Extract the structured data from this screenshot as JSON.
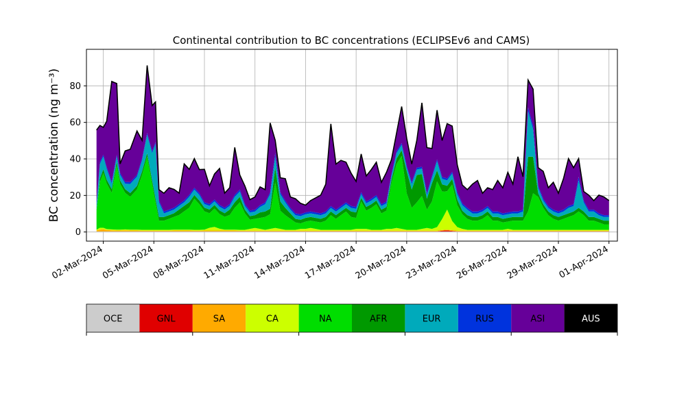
{
  "chart_data": {
    "type": "area",
    "stacked": true,
    "title": "Continental contribution to BC concentrations (ECLIPSEv6 and CAMS)",
    "ylabel": "BC concentration (ng m⁻³)",
    "ylim": [
      -5,
      100
    ],
    "yticks": [
      0,
      20,
      40,
      60,
      80
    ],
    "grid": true,
    "x_start_day": 1.4,
    "x_ticks": [
      {
        "day": 2,
        "label": "02-Mar-2024"
      },
      {
        "day": 5,
        "label": "05-Mar-2024"
      },
      {
        "day": 8,
        "label": "08-Mar-2024"
      },
      {
        "day": 11,
        "label": "11-Mar-2024"
      },
      {
        "day": 14,
        "label": "14-Mar-2024"
      },
      {
        "day": 17,
        "label": "17-Mar-2024"
      },
      {
        "day": 20,
        "label": "20-Mar-2024"
      },
      {
        "day": 23,
        "label": "23-Mar-2024"
      },
      {
        "day": 26,
        "label": "26-Mar-2024"
      },
      {
        "day": 29,
        "label": "29-Mar-2024"
      },
      {
        "day": 32,
        "label": "01-Apr-2024"
      }
    ],
    "x": [
      1.6,
      1.8,
      2.0,
      2.2,
      2.5,
      2.8,
      3.0,
      3.3,
      3.6,
      4.0,
      4.3,
      4.6,
      4.9,
      5.1,
      5.3,
      5.6,
      5.9,
      6.2,
      6.5,
      6.8,
      7.1,
      7.4,
      7.7,
      8.0,
      8.3,
      8.6,
      8.9,
      9.2,
      9.5,
      9.8,
      10.1,
      10.4,
      10.7,
      11.0,
      11.3,
      11.6,
      11.9,
      12.2,
      12.5,
      12.8,
      13.1,
      13.4,
      13.7,
      14.0,
      14.3,
      14.6,
      14.9,
      15.2,
      15.5,
      15.8,
      16.1,
      16.4,
      16.7,
      17.0,
      17.3,
      17.6,
      17.9,
      18.2,
      18.5,
      18.8,
      19.1,
      19.4,
      19.7,
      20.0,
      20.3,
      20.6,
      20.9,
      21.2,
      21.5,
      21.8,
      22.1,
      22.4,
      22.7,
      23.0,
      23.3,
      23.6,
      23.9,
      24.2,
      24.5,
      24.8,
      25.1,
      25.4,
      25.7,
      26.0,
      26.3,
      26.6,
      26.9,
      27.2,
      27.5,
      27.8,
      28.1,
      28.4,
      28.7,
      29.0,
      29.3,
      29.6,
      29.9,
      30.2,
      30.5,
      30.8,
      31.1,
      31.4,
      31.7,
      32.0
    ],
    "series": [
      {
        "name": "OCE",
        "color": "#cccccc",
        "values": [
          0.3,
          0.3,
          0.3,
          0.3,
          0.3,
          0.3,
          0.3,
          0.3,
          0.3,
          0.3,
          0.3,
          0.3,
          0.3,
          0.3,
          0.3,
          0.3,
          0.3,
          0.3,
          0.3,
          0.3,
          0.3,
          0.3,
          0.3,
          0.3,
          0.3,
          0.3,
          0.3,
          0.3,
          0.3,
          0.3,
          0.3,
          0.3,
          0.3,
          0.3,
          0.3,
          0.3,
          0.3,
          0.3,
          0.3,
          0.3,
          0.3,
          0.3,
          0.3,
          0.3,
          0.3,
          0.3,
          0.3,
          0.3,
          0.3,
          0.3,
          0.3,
          0.3,
          0.3,
          0.3,
          0.3,
          0.3,
          0.3,
          0.3,
          0.3,
          0.3,
          0.3,
          0.3,
          0.3,
          0.3,
          0.3,
          0.3,
          0.3,
          0.3,
          0.3,
          0.3,
          0.3,
          0.3,
          0.3,
          0.3,
          0.3,
          0.3,
          0.3,
          0.3,
          0.3,
          0.3,
          0.3,
          0.3,
          0.3,
          0.3,
          0.3,
          0.3,
          0.3,
          0.3,
          0.3,
          0.3,
          0.3,
          0.3,
          0.3,
          0.3,
          0.3,
          0.3,
          0.3,
          0.3,
          0.3,
          0.3,
          0.3,
          0.3,
          0.3,
          0.3
        ]
      },
      {
        "name": "GNL",
        "color": "#e00000",
        "values": [
          0,
          0,
          0,
          0,
          0,
          0,
          0,
          0,
          0,
          0,
          0,
          0,
          0,
          0,
          0,
          0,
          0,
          0,
          0,
          0,
          0,
          0,
          0,
          0,
          0,
          0,
          0,
          0,
          0,
          0,
          0,
          0,
          0,
          0,
          0,
          0,
          0,
          0,
          0,
          0,
          0,
          0,
          0,
          0,
          0,
          0,
          0,
          0,
          0,
          0,
          0,
          0,
          0,
          0,
          0,
          0,
          0,
          0,
          0,
          0,
          0,
          0,
          0,
          0,
          0,
          0,
          0,
          0,
          0,
          0,
          0.4,
          0.6,
          0.3,
          0,
          0,
          0,
          0,
          0,
          0,
          0,
          0,
          0,
          0,
          0,
          0,
          0,
          0,
          0,
          0,
          0,
          0,
          0,
          0,
          0,
          0,
          0,
          0,
          0,
          0,
          0,
          0,
          0,
          0,
          0
        ]
      },
      {
        "name": "SA",
        "color": "#ffaa00",
        "values": [
          0.5,
          1.0,
          1.2,
          0.8,
          0.6,
          0.5,
          0.5,
          0.6,
          0.5,
          0.5,
          0.4,
          0.4,
          0.4,
          0.4,
          0.4,
          0.4,
          0.4,
          0.5,
          0.5,
          0.5,
          0.5,
          0.4,
          0.4,
          0.5,
          0.5,
          0.5,
          0.5,
          0.5,
          0.5,
          0.5,
          0.4,
          0.4,
          0.4,
          0.4,
          0.4,
          0.4,
          0.4,
          0.4,
          0.4,
          0.4,
          0.4,
          0.4,
          0.4,
          0.4,
          0.4,
          0.4,
          0.4,
          0.4,
          0.4,
          0.4,
          0.4,
          0.4,
          0.4,
          0.4,
          0.4,
          0.4,
          0.4,
          0.4,
          0.4,
          0.4,
          0.4,
          0.4,
          0.4,
          0.4,
          0.4,
          0.4,
          0.4,
          0.4,
          0.4,
          0.4,
          0.4,
          0.4,
          0.4,
          0.4,
          0.4,
          0.4,
          0.4,
          0.4,
          0.4,
          0.4,
          0.4,
          0.4,
          0.4,
          0.4,
          0.4,
          0.4,
          0.4,
          0.4,
          0.4,
          0.4,
          0.4,
          0.4,
          0.4,
          0.4,
          0.4,
          0.4,
          0.4,
          0.4,
          0.4,
          0.4,
          0.4,
          0.4,
          0.4,
          0.4
        ]
      },
      {
        "name": "CA",
        "color": "#ccff00",
        "values": [
          0.5,
          1.0,
          0.8,
          0.5,
          0.5,
          0.5,
          0.5,
          0.5,
          0.5,
          0.5,
          0.5,
          0.5,
          0.5,
          0.5,
          0.5,
          0.5,
          0.5,
          0.5,
          0.5,
          0.5,
          0.5,
          0.5,
          0.5,
          0.5,
          1.5,
          2.0,
          1.0,
          0.5,
          0.5,
          0.5,
          0.5,
          0.5,
          1.0,
          1.5,
          1.0,
          0.5,
          1.0,
          1.5,
          1.0,
          0.5,
          0.5,
          0.5,
          1.0,
          1.0,
          1.5,
          1.0,
          0.5,
          0.5,
          0.5,
          0.5,
          0.5,
          0.5,
          0.5,
          1.0,
          1.0,
          1.0,
          0.5,
          0.5,
          0.5,
          1.0,
          1.0,
          1.5,
          1.0,
          0.5,
          0.5,
          0.5,
          1.0,
          1.5,
          1.0,
          2.0,
          6.0,
          11.0,
          5.0,
          2.0,
          1.0,
          0.5,
          0.5,
          0.5,
          0.5,
          0.5,
          0.5,
          0.5,
          0.5,
          1.0,
          0.5,
          0.5,
          0.5,
          0.5,
          0.5,
          0.5,
          0.5,
          0.5,
          0.5,
          0.5,
          0.5,
          0.5,
          0.5,
          0.5,
          0.5,
          0.5,
          0.5,
          0.5,
          0.5,
          0.5
        ]
      },
      {
        "name": "NA",
        "color": "#00dd00",
        "values": [
          10,
          25,
          30,
          25,
          20,
          35,
          25,
          20,
          18,
          22,
          30,
          40,
          25,
          15,
          5,
          5,
          6,
          7,
          8,
          10,
          12,
          17,
          14,
          10,
          8,
          10,
          8,
          7,
          8,
          12,
          15,
          9,
          5,
          5,
          6,
          7,
          8,
          25,
          10,
          8,
          6,
          4,
          3,
          4,
          4,
          4,
          4,
          5,
          8,
          6,
          8,
          10,
          7,
          6,
          15,
          10,
          12,
          14,
          9,
          10,
          25,
          35,
          40,
          20,
          12,
          15,
          18,
          10,
          15,
          25,
          15,
          10,
          20,
          12,
          8,
          6,
          5,
          5,
          6,
          8,
          5,
          5,
          4,
          4,
          5,
          5,
          5,
          10,
          20,
          18,
          12,
          8,
          6,
          5,
          6,
          7,
          8,
          10,
          8,
          5,
          5,
          4,
          3,
          3
        ]
      },
      {
        "name": "AFR",
        "color": "#009900",
        "values": [
          1,
          2,
          2,
          2,
          2,
          2,
          2,
          2,
          2,
          2,
          2,
          2,
          2,
          2,
          2,
          2,
          2,
          2,
          3,
          3,
          3,
          2,
          2,
          2,
          2,
          2,
          2,
          2,
          3,
          3,
          3,
          2,
          2,
          2,
          3,
          3,
          3,
          8,
          5,
          4,
          3,
          2,
          2,
          2,
          2,
          2,
          2,
          2,
          2,
          2,
          2,
          2,
          3,
          3,
          2,
          2,
          2,
          2,
          2,
          2,
          2,
          3,
          3,
          12,
          10,
          15,
          12,
          6,
          10,
          6,
          4,
          3,
          3,
          3,
          2,
          2,
          2,
          2,
          2,
          2,
          2,
          2,
          2,
          2,
          2,
          2,
          2,
          30,
          20,
          2,
          2,
          2,
          2,
          2,
          2,
          2,
          2,
          2,
          2,
          2,
          2,
          2,
          2,
          2
        ]
      },
      {
        "name": "EUR",
        "color": "#00aabb",
        "values": [
          3,
          8,
          7,
          6,
          3,
          3,
          3,
          3,
          5,
          5,
          6,
          10,
          15,
          30,
          8,
          2,
          2,
          2,
          2,
          2,
          3,
          3,
          3,
          2,
          2,
          2,
          2,
          2,
          2,
          3,
          3,
          2,
          2,
          2,
          3,
          4,
          8,
          6,
          4,
          3,
          2,
          2,
          2,
          2,
          2,
          2,
          2,
          2,
          2,
          2,
          2,
          2,
          2,
          2,
          2,
          2,
          2,
          2,
          2,
          2,
          2,
          3,
          3,
          2,
          3,
          3,
          3,
          2,
          3,
          5,
          3,
          3,
          3,
          3,
          3,
          3,
          2,
          2,
          2,
          2,
          2,
          2,
          2,
          2,
          2,
          2,
          3,
          25,
          15,
          3,
          2,
          2,
          2,
          2,
          2,
          3,
          3,
          15,
          5,
          3,
          3,
          2,
          2,
          2
        ]
      },
      {
        "name": "RUS",
        "color": "#0033dd",
        "values": [
          0.5,
          1,
          1,
          1,
          1,
          1,
          1,
          1,
          1,
          1,
          1,
          1,
          1,
          1,
          1,
          1,
          1,
          1,
          1,
          1,
          1,
          1,
          1,
          1,
          1,
          1,
          1,
          1,
          1,
          1,
          1,
          1,
          1,
          1,
          1,
          1,
          1,
          2,
          1,
          1,
          1,
          1,
          1,
          1,
          1,
          1,
          1,
          1,
          1,
          1,
          1,
          1,
          1,
          1,
          1,
          1,
          1,
          1,
          1,
          1,
          1,
          1,
          1,
          1,
          1,
          1,
          1,
          1,
          1,
          1,
          1,
          1,
          1,
          1,
          1,
          1,
          1,
          1,
          1,
          1,
          1,
          1,
          1,
          1,
          1,
          1,
          1,
          2,
          2,
          1,
          1,
          1,
          1,
          1,
          1,
          1,
          1,
          2,
          1,
          1,
          1,
          1,
          1,
          1
        ]
      },
      {
        "name": "ASI",
        "color": "#660099",
        "values": [
          40,
          20,
          15,
          25,
          55,
          39,
          5,
          17,
          18,
          24,
          10,
          37,
          25,
          22,
          6,
          10,
          12,
          10,
          6,
          20,
          14,
          16,
          13,
          18,
          10,
          14,
          20,
          8,
          9,
          26,
          8,
          10,
          6,
          7,
          10,
          7,
          38,
          7,
          8,
          12,
          6,
          8,
          6,
          4,
          6,
          8,
          10,
          15,
          45,
          25,
          25,
          22,
          18,
          14,
          21,
          14,
          16,
          18,
          12,
          16,
          8,
          10,
          20,
          15,
          10,
          15,
          35,
          25,
          15,
          27,
          20,
          30,
          25,
          15,
          10,
          10,
          15,
          17,
          9,
          10,
          12,
          17,
          14,
          22,
          15,
          30,
          18,
          15,
          20,
          10,
          15,
          10,
          15,
          10,
          17,
          26,
          20,
          10,
          5,
          8,
          5,
          10,
          10,
          8
        ]
      },
      {
        "name": "AUS",
        "color": "#000000",
        "values": [
          0,
          0,
          0,
          0,
          0,
          0,
          0,
          0,
          0,
          0,
          0,
          0,
          0,
          0,
          0,
          0,
          0,
          0,
          0,
          0,
          0,
          0,
          0,
          0,
          0,
          0,
          0,
          0,
          0,
          0,
          0,
          0,
          0,
          0,
          0,
          0,
          0,
          0,
          0,
          0,
          0,
          0,
          0,
          0,
          0,
          0,
          0,
          0,
          0,
          0,
          0,
          0,
          0,
          0,
          0,
          0,
          0,
          0,
          0,
          0,
          0,
          0,
          0,
          0,
          0,
          0,
          0,
          0,
          0,
          0,
          0,
          0,
          0,
          0,
          0,
          0,
          0,
          0,
          0,
          0,
          0,
          0,
          0,
          0,
          0,
          0,
          0,
          0,
          0,
          0,
          0,
          0,
          0,
          0,
          0,
          0,
          0,
          0,
          0,
          0,
          0,
          0,
          0,
          0
        ]
      }
    ]
  },
  "legend": {
    "items": [
      {
        "label": "OCE",
        "color": "#cccccc",
        "text_color": "#000000"
      },
      {
        "label": "GNL",
        "color": "#e00000",
        "text_color": "#000000"
      },
      {
        "label": "SA",
        "color": "#ffaa00",
        "text_color": "#000000"
      },
      {
        "label": "CA",
        "color": "#ccff00",
        "text_color": "#000000"
      },
      {
        "label": "NA",
        "color": "#00dd00",
        "text_color": "#000000"
      },
      {
        "label": "AFR",
        "color": "#009900",
        "text_color": "#000000"
      },
      {
        "label": "EUR",
        "color": "#00aabb",
        "text_color": "#000000"
      },
      {
        "label": "RUS",
        "color": "#0033dd",
        "text_color": "#000000"
      },
      {
        "label": "ASI",
        "color": "#660099",
        "text_color": "#000000"
      },
      {
        "label": "AUS",
        "color": "#000000",
        "text_color": "#ffffff"
      }
    ]
  }
}
